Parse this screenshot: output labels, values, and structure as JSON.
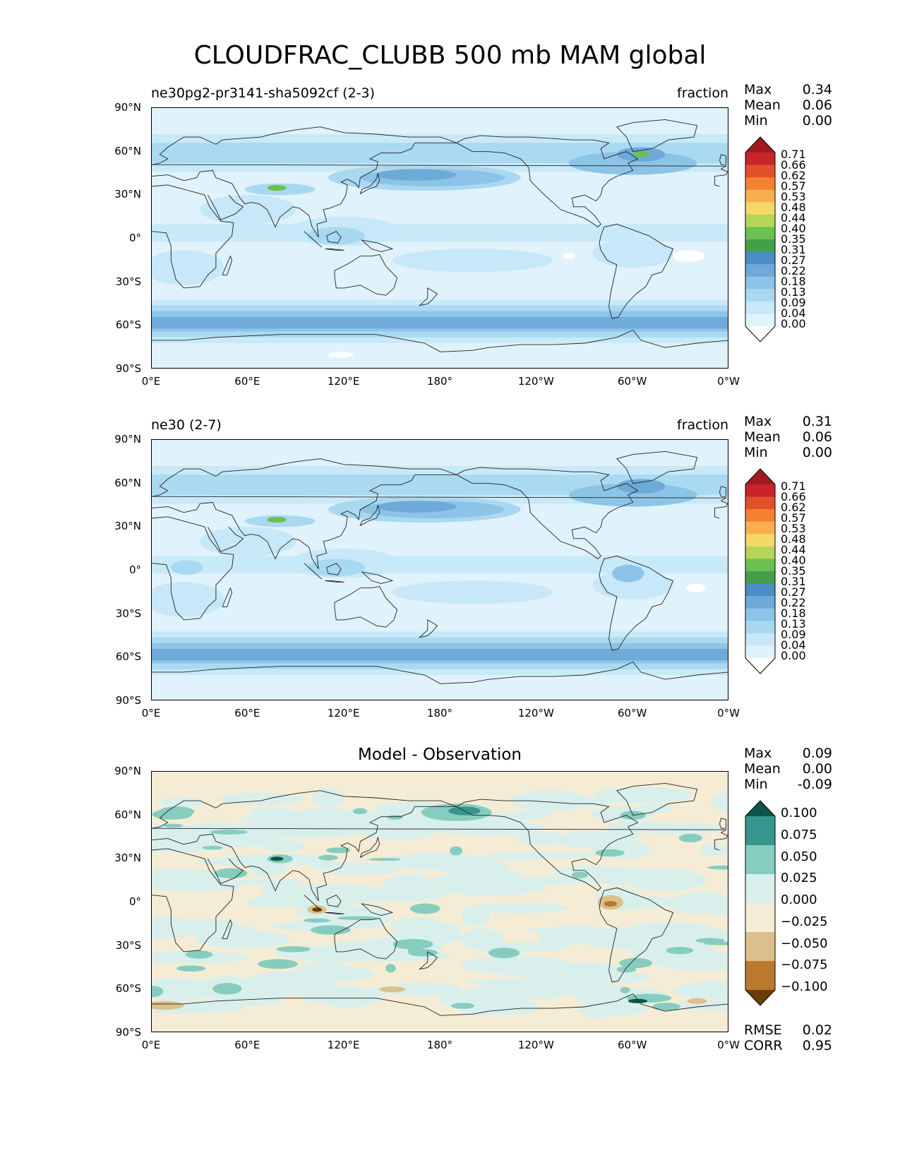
{
  "title": "CLOUDFRAC_CLUBB 500 mb MAM global",
  "panels": [
    {
      "left_label": "ne30pg2-pr3141-sha5092cf (2-3)",
      "right_label": "fraction",
      "stats": [
        {
          "k": "Max",
          "v": "0.34"
        },
        {
          "k": "Mean",
          "v": "0.06"
        },
        {
          "k": "Min",
          "v": "0.00"
        }
      ],
      "colorbar_labels": [
        "0.71",
        "0.66",
        "0.62",
        "0.57",
        "0.53",
        "0.48",
        "0.44",
        "0.40",
        "0.35",
        "0.31",
        "0.27",
        "0.22",
        "0.18",
        "0.13",
        "0.09",
        "0.04",
        "0.00"
      ]
    },
    {
      "left_label": "ne30 (2-7)",
      "right_label": "fraction",
      "stats": [
        {
          "k": "Max",
          "v": "0.31"
        },
        {
          "k": "Mean",
          "v": "0.06"
        },
        {
          "k": "Min",
          "v": "0.00"
        }
      ],
      "colorbar_labels": [
        "0.71",
        "0.66",
        "0.62",
        "0.57",
        "0.53",
        "0.48",
        "0.44",
        "0.40",
        "0.35",
        "0.31",
        "0.27",
        "0.22",
        "0.18",
        "0.13",
        "0.09",
        "0.04",
        "0.00"
      ]
    },
    {
      "center_label": "Model - Observation",
      "stats": [
        {
          "k": "Max",
          "v": "0.09"
        },
        {
          "k": "Mean",
          "v": "0.00"
        },
        {
          "k": "Min",
          "v": "-0.09"
        }
      ],
      "colorbar_labels": [
        "0.100",
        "0.075",
        "0.050",
        "0.025",
        "0.000",
        "−0.025",
        "−0.050",
        "−0.075",
        "−0.100"
      ],
      "extra_stats": [
        {
          "k": "RMSE",
          "v": "0.02"
        },
        {
          "k": "CORR",
          "v": "0.95"
        }
      ]
    }
  ],
  "axes": {
    "lat_ticks": [
      "90°N",
      "60°N",
      "30°N",
      "0°",
      "30°S",
      "60°S",
      "90°S"
    ],
    "lon_ticks": [
      "0°E",
      "60°E",
      "120°E",
      "180°",
      "120°W",
      "60°W",
      "0°W"
    ]
  },
  "colors": {
    "seq": [
      "#ffffff",
      "#e0f2fb",
      "#c6e8f8",
      "#a9d8f1",
      "#8cc4e8",
      "#6ea9d8",
      "#4a8cc6",
      "#43a04a",
      "#6cc04d",
      "#b5d55a",
      "#f5d966",
      "#fbae4f",
      "#f4812f",
      "#e2502b",
      "#c8242a",
      "#a21a20"
    ],
    "div": [
      "#6b3e08",
      "#b97a30",
      "#dcc08b",
      "#f5ecd5",
      "#d9efec",
      "#86cdbf",
      "#35968d",
      "#0c5548"
    ]
  }
}
